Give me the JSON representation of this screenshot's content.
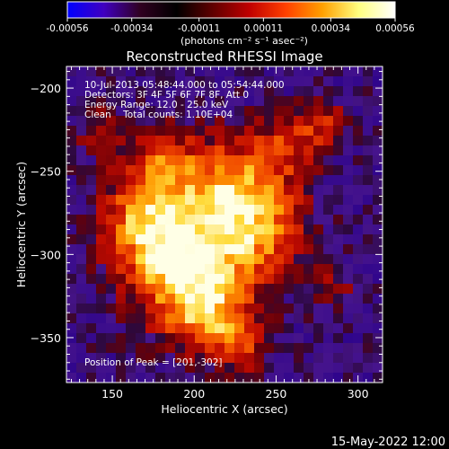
{
  "colorbar": {
    "tick_labels": [
      "-0.00056",
      "-0.00034",
      "-0.00011",
      "0.00011",
      "0.00034",
      "0.00056"
    ],
    "ticks": [
      -0.00056,
      -0.00034,
      -0.00011,
      0.00011,
      0.00034,
      0.00056
    ],
    "range": [
      -0.00056,
      0.00056
    ],
    "units_label": "(photons cm⁻² s⁻¹ asec⁻²)",
    "colormap": [
      "#0000ff",
      "#4000c0",
      "#300020",
      "#000000",
      "#600000",
      "#c00000",
      "#ff4000",
      "#ffa000",
      "#ffff80",
      "#ffffff"
    ]
  },
  "chart_data": {
    "type": "heatmap",
    "title": "Reconstructed RHESSI Image",
    "xlabel": "Heliocentric X (arcsec)",
    "ylabel": "Heliocentric Y (arcsec)",
    "xlim": [
      122,
      315
    ],
    "ylim": [
      -377,
      -187
    ],
    "x_ticks": [
      150,
      200,
      250,
      300
    ],
    "y_ticks": [
      -200,
      -250,
      -300,
      -350
    ],
    "x_tick_labels": [
      "150",
      "200",
      "250",
      "300"
    ],
    "y_tick_labels": [
      "−200",
      "−250",
      "−300",
      "−350"
    ],
    "peak": [
      201,
      -302
    ],
    "annotations": [
      "10-Jul-2013 05:48:44.000 to 05:54:44.000",
      "Detectors: 3F 4F 5F 6F 7F 8F, Att 0",
      "Energy Range: 12.0 - 25.0 keV",
      "Clean    Total counts: 1.10E+04"
    ],
    "peak_label": "Position of Peak = [201,-302]"
  },
  "footer": {
    "date": "15-May-2022 12:00"
  }
}
